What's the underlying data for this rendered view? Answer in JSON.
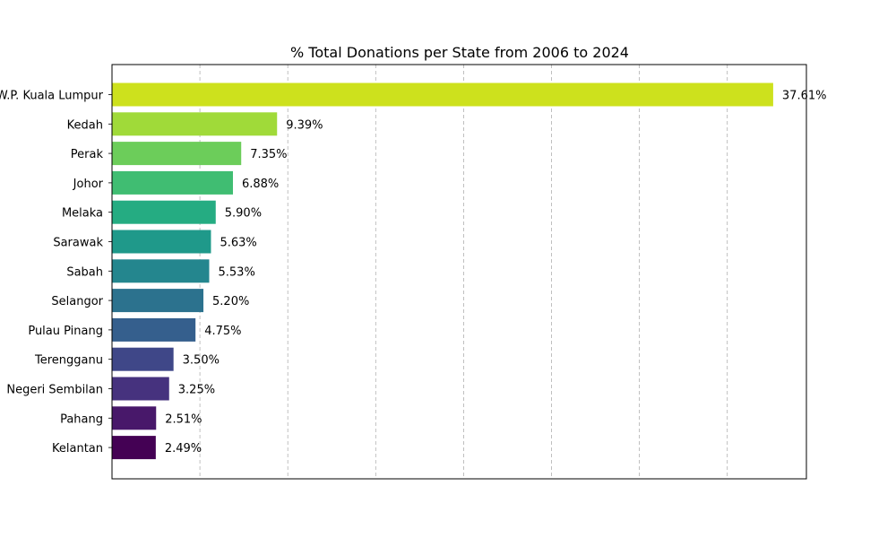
{
  "chart_data": {
    "type": "bar",
    "orientation": "horizontal",
    "title": "% Total Donations per State from 2006 to 2024",
    "xlabel": "",
    "ylabel": "",
    "xlim": [
      0,
      39.5
    ],
    "grid": {
      "x": true,
      "y": false,
      "style": "dashed"
    },
    "x_gridlines": [
      5,
      10,
      15,
      20,
      25,
      30,
      35
    ],
    "x_tick_labels_shown": false,
    "categories": [
      "W.P. Kuala Lumpur",
      "Kedah",
      "Perak",
      "Johor",
      "Melaka",
      "Sarawak",
      "Sabah",
      "Selangor",
      "Pulau Pinang",
      "Terengganu",
      "Negeri Sembilan",
      "Pahang",
      "Kelantan"
    ],
    "values": [
      37.61,
      9.39,
      7.35,
      6.88,
      5.9,
      5.63,
      5.53,
      5.2,
      4.75,
      3.5,
      3.25,
      2.51,
      2.49
    ],
    "data_labels": [
      "37.61%",
      "9.39%",
      "7.35%",
      "6.88%",
      "5.90%",
      "5.63%",
      "5.53%",
      "5.20%",
      "4.75%",
      "3.50%",
      "3.25%",
      "2.51%",
      "2.49%"
    ],
    "colors": [
      "#cde11d",
      "#a0da39",
      "#6ccd5a",
      "#40bd72",
      "#25ac82",
      "#1f998a",
      "#24868e",
      "#2c728e",
      "#355f8d",
      "#3f4788",
      "#46327e",
      "#48186a",
      "#440154"
    ]
  }
}
